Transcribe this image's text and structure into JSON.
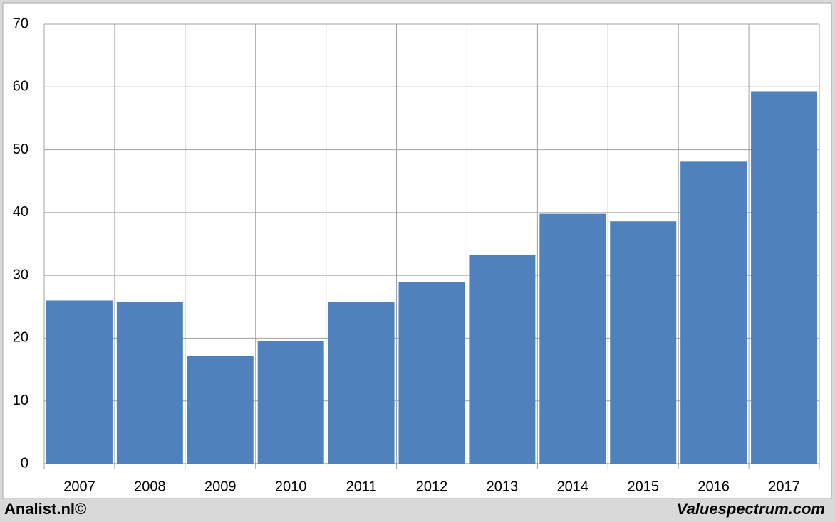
{
  "chart_data": {
    "type": "bar",
    "categories": [
      "2007",
      "2008",
      "2009",
      "2010",
      "2011",
      "2012",
      "2013",
      "2014",
      "2015",
      "2016",
      "2017"
    ],
    "values": [
      26.0,
      25.8,
      17.2,
      19.6,
      25.8,
      28.9,
      33.2,
      39.8,
      38.6,
      48.1,
      59.3
    ],
    "color": "#4f81bd",
    "ylim": [
      0,
      70
    ],
    "yticks": [
      0,
      10,
      20,
      30,
      40,
      50,
      60,
      70
    ],
    "grid": true,
    "footer_left": "Analist.nl©",
    "footer_right": "Valuespectrum.com"
  }
}
